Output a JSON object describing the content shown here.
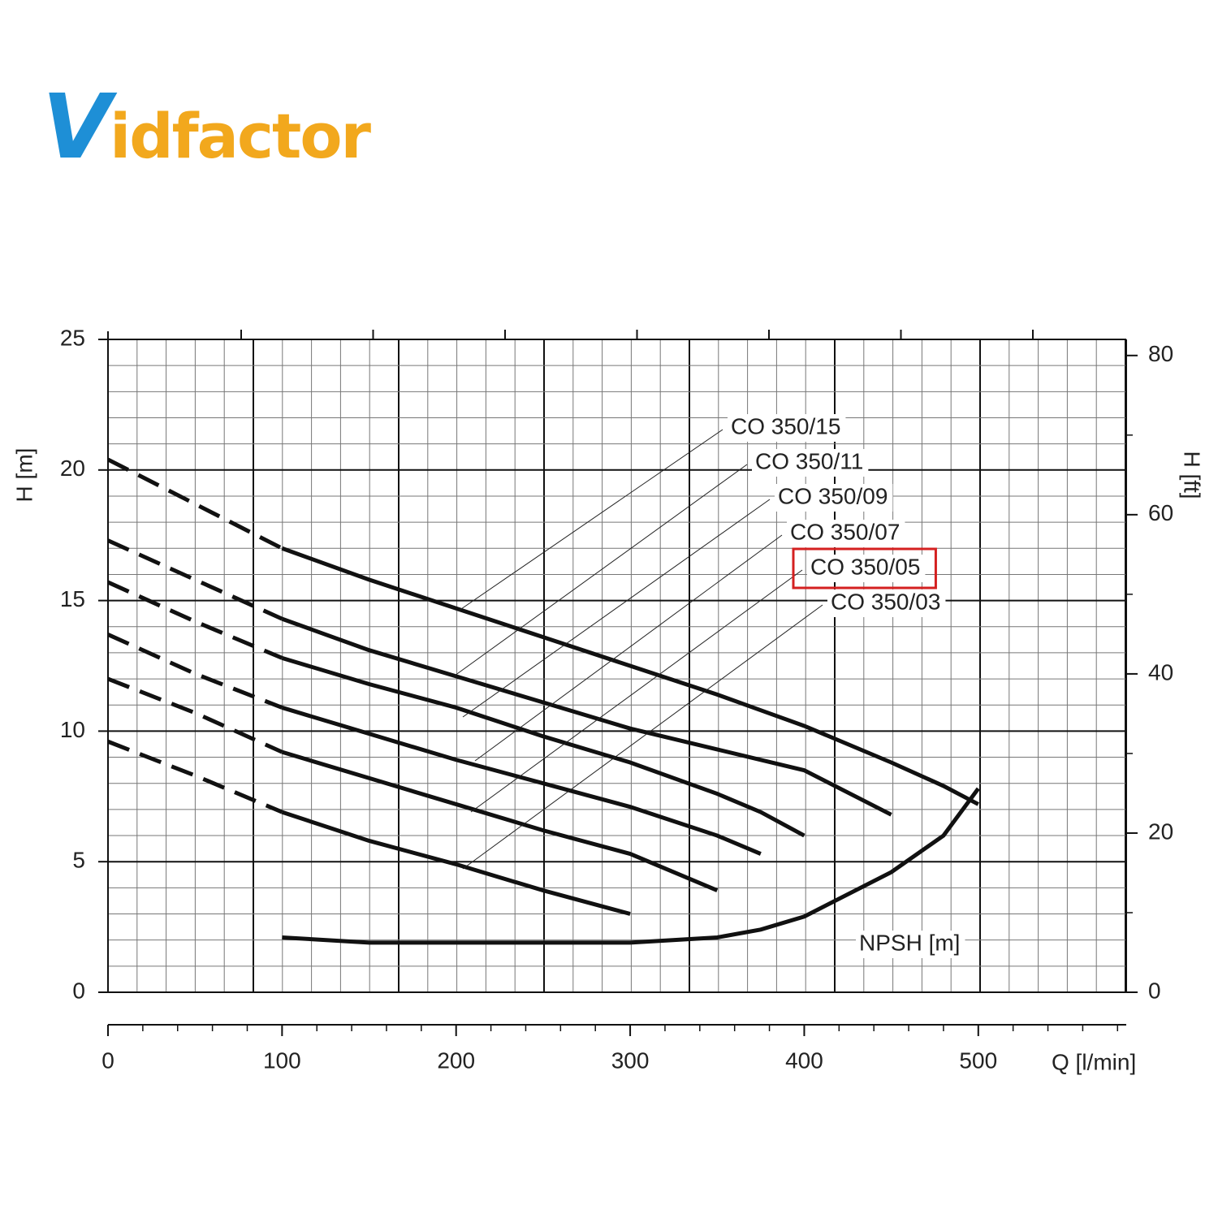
{
  "logo": "Vidfactor",
  "chart_data": {
    "type": "line",
    "x_label": "Q [l/min]",
    "y_label": "H [m]",
    "y2_label": "H [ft]",
    "x": [
      0,
      50,
      100,
      150,
      200,
      250,
      300,
      350,
      375,
      400,
      450,
      480,
      500
    ],
    "xlim": [
      0,
      585
    ],
    "xticks": [
      0,
      100,
      200,
      300,
      400,
      500
    ],
    "ylim": [
      0,
      25
    ],
    "yticks": [
      0,
      5,
      10,
      15,
      20,
      25
    ],
    "y2lim": [
      0,
      82.02
    ],
    "y2ticks": [
      0,
      20,
      40,
      60,
      80
    ],
    "grid": true,
    "highlight_series": 4,
    "series": [
      {
        "name": "CO 350/15",
        "color": "#111111",
        "values": [
          20.4,
          18.7,
          17.0,
          15.8,
          14.7,
          13.6,
          12.5,
          11.4,
          10.8,
          10.2,
          8.8,
          7.9,
          7.2
        ]
      },
      {
        "name": "CO 350/11",
        "color": "#111111",
        "values": [
          17.3,
          15.8,
          14.3,
          13.1,
          12.1,
          11.1,
          10.1,
          9.3,
          8.9,
          8.5,
          6.8,
          null,
          null
        ]
      },
      {
        "name": "CO 350/09",
        "color": "#111111",
        "values": [
          15.7,
          14.2,
          12.8,
          11.8,
          10.9,
          9.8,
          8.8,
          7.6,
          6.9,
          6.0,
          null,
          null,
          null
        ]
      },
      {
        "name": "CO 350/07",
        "color": "#111111",
        "values": [
          13.7,
          12.2,
          10.9,
          9.9,
          8.9,
          8.0,
          7.1,
          6.0,
          5.3,
          null,
          null,
          null,
          null
        ]
      },
      {
        "name": "CO 350/05",
        "color": "#111111",
        "values": [
          12.0,
          10.7,
          9.2,
          8.2,
          7.2,
          6.2,
          5.3,
          3.9,
          null,
          null,
          null,
          null,
          null
        ]
      },
      {
        "name": "CO 350/03",
        "color": "#111111",
        "values": [
          9.6,
          8.3,
          6.9,
          5.8,
          4.9,
          3.9,
          3.0,
          null,
          null,
          null,
          null,
          null,
          null
        ]
      },
      {
        "name": "NPSH [m]",
        "color": "#111111",
        "values": [
          null,
          null,
          2.1,
          1.9,
          1.9,
          1.9,
          1.9,
          2.1,
          2.4,
          2.9,
          4.6,
          6.0,
          7.8
        ]
      }
    ]
  }
}
